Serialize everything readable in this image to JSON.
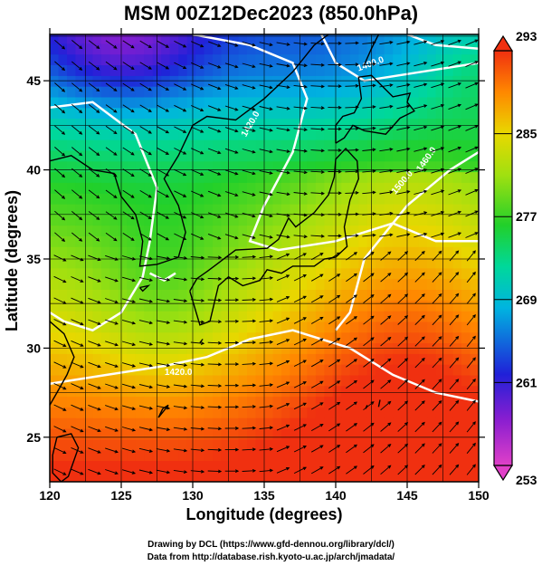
{
  "title": "MSM 00Z12Dec2023 (850.0hPa)",
  "xlabel": "Longitude (degrees)",
  "ylabel": "Latitude  (degrees)",
  "credit_line1": "Drawing by DCL (https://www.gfd-dennou.org/library/dcl/)",
  "credit_line2": "Data from http://database.rish.kyoto-u.ac.jp/arch/jmadata/",
  "chart_data": {
    "type": "heatmap",
    "x_range": [
      120,
      150
    ],
    "y_range": [
      22.5,
      47.6
    ],
    "x_ticks": [
      120,
      125,
      130,
      135,
      140,
      145,
      150
    ],
    "y_ticks": [
      25,
      30,
      35,
      40,
      45
    ],
    "grid": true,
    "colorbar": {
      "min": 253,
      "max": 293,
      "tick_labels": [
        293,
        285,
        277,
        269,
        261,
        253
      ],
      "stops": [
        "#e040c8",
        "#8a1ed0",
        "#2020d8",
        "#00b4e0",
        "#00d89a",
        "#22d02a",
        "#a0e010",
        "#e8d800",
        "#ff8800",
        "#f03010"
      ]
    },
    "contour_labels": [
      "1400.0",
      "1420.0",
      "1440.0",
      "1460.0",
      "1500.0"
    ],
    "contour_color": "#ffffff",
    "vector_color": "#000000"
  }
}
